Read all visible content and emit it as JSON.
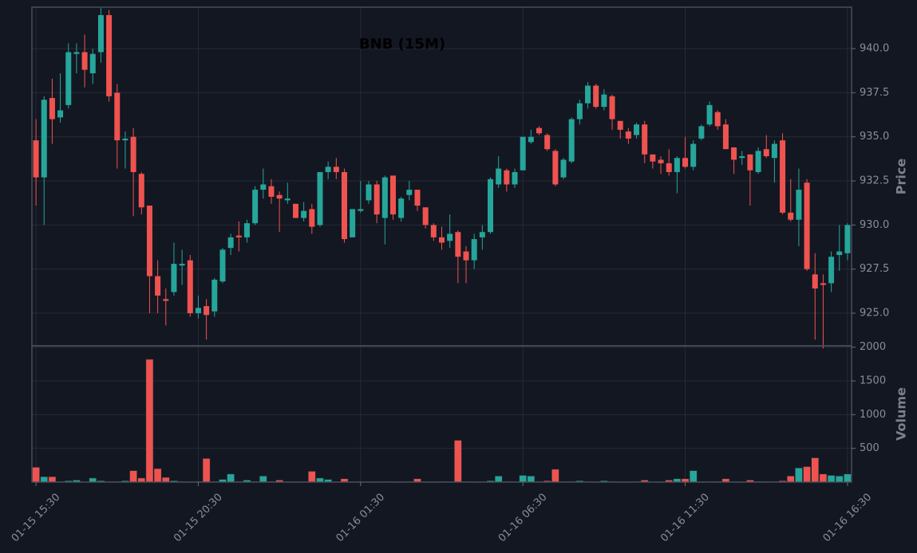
{
  "chart_data": [
    {
      "type": "candlestick",
      "title": "BNB (15M)",
      "ylabel": "Price",
      "categories": [
        "01-15 15:30",
        null,
        null,
        null,
        null,
        null,
        null,
        null,
        null,
        null,
        null,
        null,
        null,
        null,
        null,
        null,
        null,
        null,
        null,
        null,
        "01-15 20:30",
        null,
        null,
        null,
        null,
        null,
        null,
        null,
        null,
        null,
        null,
        null,
        null,
        null,
        null,
        null,
        null,
        null,
        null,
        null,
        "01-16 01:30",
        null,
        null,
        null,
        null,
        null,
        null,
        null,
        null,
        null,
        null,
        null,
        null,
        null,
        null,
        null,
        null,
        null,
        null,
        null,
        "01-16 06:30",
        null,
        null,
        null,
        null,
        null,
        null,
        null,
        null,
        null,
        null,
        null,
        null,
        null,
        null,
        null,
        null,
        null,
        null,
        null,
        "01-16 11:30",
        null,
        null,
        null,
        null,
        null,
        null,
        null,
        null,
        null,
        null,
        null,
        null,
        null,
        null,
        null,
        null,
        null,
        null,
        null,
        "01-16 16:30"
      ],
      "open": [
        934.8,
        932.7,
        937.2,
        936.1,
        936.8,
        939.7,
        939.8,
        938.6,
        939.8,
        941.9,
        937.5,
        934.8,
        935.0,
        932.9,
        931.1,
        927.1,
        925.8,
        926.2,
        927.7,
        928.0,
        925.0,
        925.4,
        925.1,
        926.8,
        928.7,
        929.4,
        929.3,
        930.1,
        932.0,
        932.2,
        931.7,
        931.4,
        931.2,
        930.4,
        930.9,
        930.0,
        933.0,
        933.3,
        933.0,
        929.3,
        930.8,
        931.4,
        932.3,
        930.4,
        932.8,
        930.4,
        931.7,
        932.0,
        931.0,
        930.0,
        929.3,
        929.1,
        929.6,
        928.5,
        928.0,
        929.3,
        929.6,
        932.3,
        933.1,
        932.3,
        933.1,
        934.7,
        935.5,
        935.1,
        934.2,
        932.7,
        933.6,
        936.0,
        936.9,
        937.9,
        936.7,
        937.3,
        935.9,
        935.3,
        935.1,
        935.7,
        934.0,
        933.7,
        933.5,
        933.0,
        933.8,
        933.3,
        934.9,
        935.7,
        936.4,
        935.7,
        934.4,
        933.8,
        934.0,
        933.0,
        934.3,
        933.8,
        934.8,
        930.7,
        930.3,
        932.4,
        927.2,
        926.7,
        926.7,
        928.3,
        928.4
      ],
      "high": [
        936.0,
        937.3,
        938.3,
        938.6,
        940.3,
        940.3,
        940.8,
        940.0,
        942.3,
        942.2,
        938.0,
        935.3,
        935.5,
        933.0,
        931.1,
        928.0,
        926.4,
        929.0,
        928.6,
        928.3,
        926.0,
        925.8,
        927.0,
        928.7,
        929.5,
        930.2,
        930.3,
        932.2,
        933.2,
        932.6,
        931.9,
        932.4,
        931.2,
        931.3,
        931.2,
        933.0,
        933.6,
        933.8,
        933.2,
        930.9,
        932.5,
        932.5,
        932.5,
        932.8,
        932.8,
        931.6,
        932.5,
        932.0,
        931.0,
        930.1,
        929.9,
        930.6,
        929.7,
        928.8,
        929.5,
        930.0,
        932.7,
        933.9,
        933.2,
        933.2,
        935.0,
        935.4,
        935.6,
        935.2,
        934.3,
        933.8,
        936.1,
        937.1,
        938.1,
        938.0,
        937.7,
        937.4,
        935.9,
        935.5,
        935.8,
        935.9,
        934.0,
        933.9,
        934.3,
        933.9,
        935.0,
        934.8,
        935.7,
        937.0,
        936.5,
        936.0,
        934.4,
        934.2,
        934.0,
        934.4,
        935.1,
        934.8,
        935.2,
        932.6,
        933.2,
        932.6,
        928.4,
        927.2,
        928.5,
        930.0,
        930.1
      ],
      "low": [
        931.1,
        930.0,
        934.6,
        935.8,
        936.6,
        938.6,
        937.8,
        938.0,
        939.2,
        937.0,
        933.2,
        933.2,
        930.5,
        930.6,
        925.0,
        925.0,
        924.3,
        926.0,
        926.6,
        924.8,
        924.7,
        923.5,
        924.8,
        926.7,
        928.3,
        928.5,
        929.0,
        930.0,
        931.5,
        931.2,
        929.6,
        931.2,
        930.4,
        930.2,
        929.5,
        929.9,
        932.6,
        932.6,
        929.0,
        929.3,
        930.7,
        931.2,
        930.1,
        928.9,
        930.3,
        930.2,
        931.4,
        930.8,
        929.8,
        929.1,
        928.6,
        928.7,
        926.7,
        926.7,
        927.5,
        928.6,
        929.5,
        932.1,
        931.9,
        932.1,
        933.1,
        934.6,
        935.1,
        934.2,
        932.2,
        932.6,
        933.5,
        935.7,
        936.6,
        936.6,
        936.5,
        935.4,
        934.9,
        934.6,
        934.9,
        933.5,
        933.2,
        932.9,
        932.8,
        931.8,
        933.2,
        933.1,
        934.8,
        935.6,
        935.4,
        934.3,
        932.9,
        933.4,
        931.1,
        932.9,
        933.8,
        932.4,
        930.6,
        930.2,
        928.8,
        927.4,
        923.5,
        923.0,
        926.2,
        927.4,
        928.0
      ],
      "close": [
        932.7,
        937.1,
        936.0,
        936.5,
        939.8,
        939.8,
        938.8,
        939.7,
        941.9,
        937.3,
        934.8,
        934.9,
        933.0,
        931.0,
        927.1,
        926.0,
        925.7,
        927.8,
        927.8,
        925.0,
        925.3,
        924.9,
        926.9,
        928.6,
        929.3,
        929.3,
        930.1,
        932.0,
        932.3,
        931.6,
        931.5,
        931.5,
        930.4,
        930.8,
        929.9,
        933.0,
        933.3,
        933.0,
        929.2,
        930.9,
        930.9,
        932.3,
        930.6,
        932.7,
        930.6,
        931.5,
        932.0,
        931.1,
        930.0,
        929.3,
        929.0,
        929.5,
        928.2,
        928.0,
        929.2,
        929.6,
        932.6,
        933.2,
        932.3,
        933.0,
        935.0,
        935.0,
        935.2,
        934.3,
        932.3,
        933.7,
        936.0,
        936.9,
        937.9,
        936.7,
        937.4,
        936.0,
        935.4,
        934.9,
        935.7,
        934.0,
        933.6,
        933.5,
        933.0,
        933.8,
        933.3,
        934.6,
        935.6,
        936.8,
        935.6,
        934.3,
        933.7,
        933.9,
        933.1,
        934.2,
        933.9,
        934.6,
        930.7,
        930.3,
        932.0,
        927.5,
        926.4,
        926.6,
        928.2,
        928.5,
        930.0
      ],
      "ylim": [
        923.15,
        942.35
      ],
      "yticks": [
        {
          "value": 925,
          "label": "925.0"
        },
        927.5,
        {
          "value": 930,
          "label": "930.0"
        },
        932.5,
        {
          "value": 935,
          "label": "935.0"
        },
        937.5,
        {
          "value": 940,
          "label": "940.0"
        }
      ],
      "up_color": "#26a69a",
      "down_color": "#ef5350",
      "grid": true
    },
    {
      "type": "bar",
      "ylabel": "Volume",
      "values": [
        220,
        80,
        80,
        10,
        20,
        30,
        5,
        60,
        20,
        10,
        10,
        20,
        170,
        60,
        1820,
        200,
        70,
        20,
        10,
        5,
        10,
        350,
        10,
        40,
        120,
        10,
        30,
        10,
        90,
        10,
        30,
        10,
        5,
        5,
        160,
        60,
        40,
        5,
        50,
        5,
        5,
        5,
        5,
        10,
        5,
        5,
        10,
        50,
        5,
        5,
        10,
        5,
        620,
        10,
        5,
        5,
        20,
        90,
        10,
        5,
        100,
        90,
        10,
        20,
        190,
        10,
        10,
        20,
        10,
        5,
        20,
        10,
        5,
        5,
        10,
        30,
        5,
        5,
        30,
        50,
        50,
        170,
        10,
        10,
        10,
        50,
        5,
        5,
        30,
        10,
        10,
        10,
        20,
        90,
        210,
        230,
        360,
        120,
        100,
        90,
        120
      ],
      "ylim": [
        0,
        2020
      ],
      "yticks": [
        500,
        1000,
        1500,
        2000
      ],
      "grid": true
    }
  ]
}
